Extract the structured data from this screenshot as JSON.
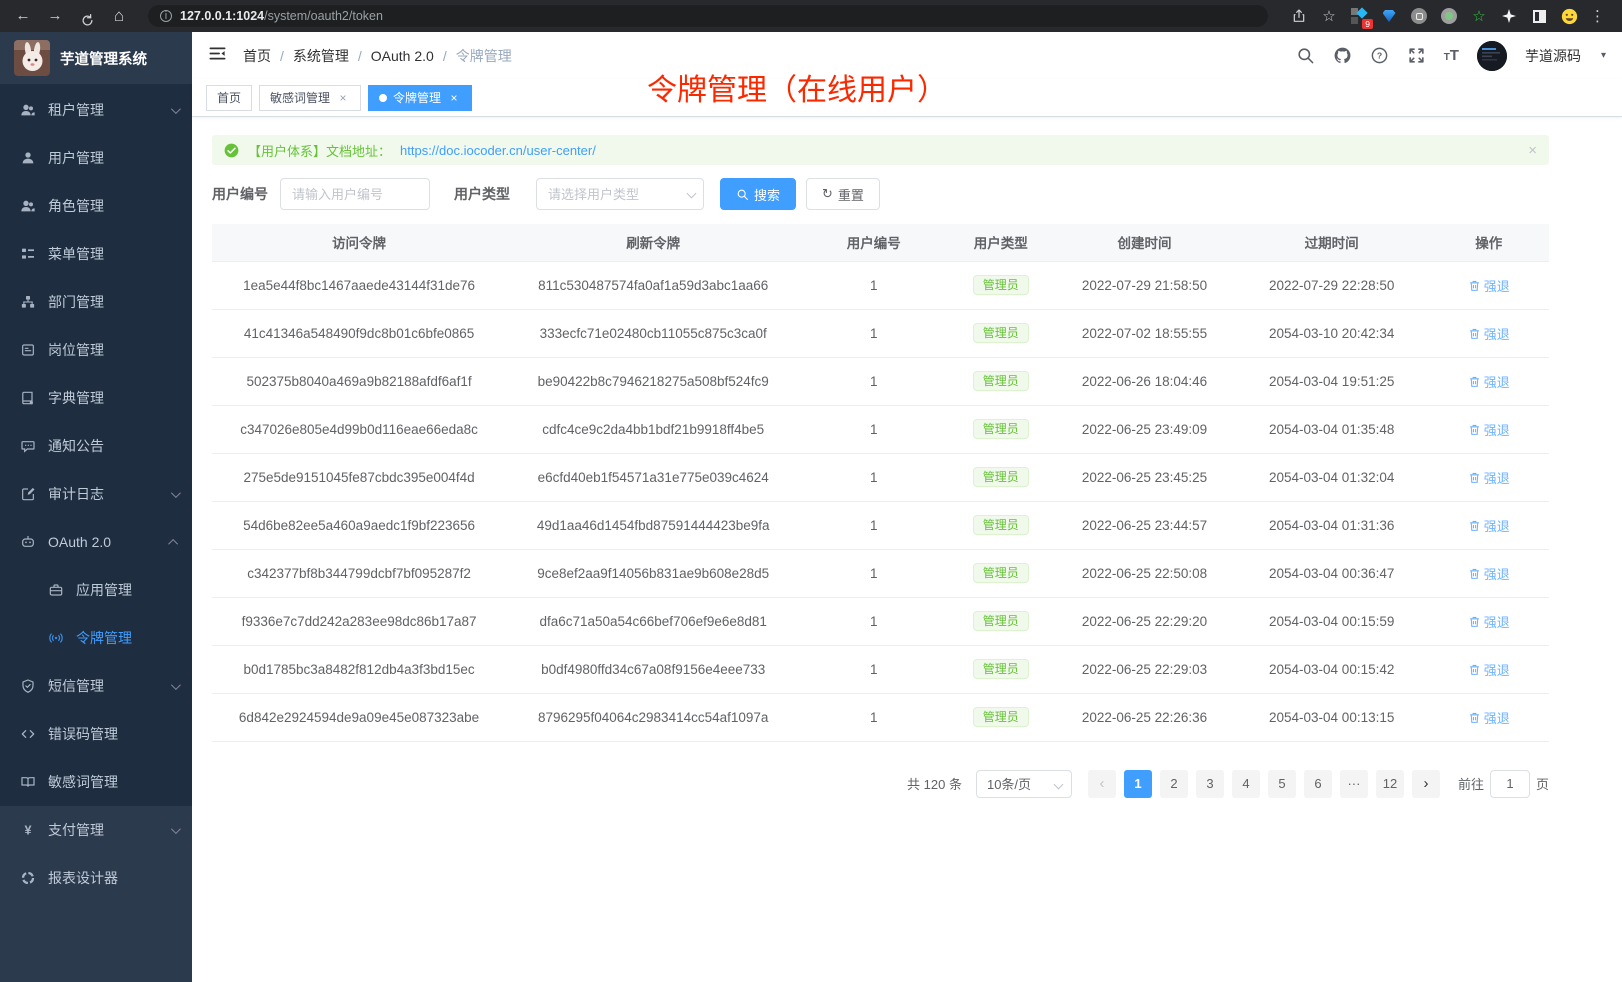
{
  "browser": {
    "url_host": "127.0.0.1:1024",
    "url_path": "/system/oauth2/token",
    "extension_badge": "9",
    "icons": [
      "back-icon",
      "forward-icon",
      "reload-icon",
      "home-icon",
      "info-icon",
      "share-icon",
      "bookmark-star-icon",
      "extension-grid-icon",
      "gem-icon",
      "command-circle-icon",
      "record-circle-icon",
      "green-star-icon",
      "pinwheel-icon",
      "reader-square-icon",
      "emoji-icon",
      "overflow-menu-icon"
    ]
  },
  "app": {
    "logo_title": "芋道管理系统",
    "annotation": "令牌管理（在线用户）",
    "breadcrumb": [
      "首页",
      "系统管理",
      "OAuth 2.0",
      "令牌管理"
    ],
    "header_icons": [
      "search-icon",
      "github-icon",
      "help-icon",
      "fullscreen-icon",
      "font-size-icon"
    ],
    "user_name": "芋道源码"
  },
  "sidebar": {
    "items": [
      {
        "label": "租户管理",
        "icon": "peoples",
        "arrow": "down"
      },
      {
        "label": "用户管理",
        "icon": "user"
      },
      {
        "label": "角色管理",
        "icon": "peoples"
      },
      {
        "label": "菜单管理",
        "icon": "tree-table"
      },
      {
        "label": "部门管理",
        "icon": "tree"
      },
      {
        "label": "岗位管理",
        "icon": "post"
      },
      {
        "label": "字典管理",
        "icon": "dict"
      },
      {
        "label": "通知公告",
        "icon": "message"
      },
      {
        "label": "审计日志",
        "icon": "log",
        "arrow": "down"
      },
      {
        "label": "OAuth 2.0",
        "icon": "robot",
        "arrow": "up"
      },
      {
        "label": "应用管理",
        "icon": "app",
        "child": true
      },
      {
        "label": "令牌管理",
        "icon": "token",
        "child": true,
        "active": true
      },
      {
        "label": "短信管理",
        "icon": "shield",
        "arrow": "down"
      },
      {
        "label": "错误码管理",
        "icon": "code"
      },
      {
        "label": "敏感词管理",
        "icon": "book-open"
      },
      {
        "label": "支付管理",
        "icon": "yen",
        "arrow": "down",
        "section2": true
      },
      {
        "label": "报表设计器",
        "icon": "chart",
        "section2": true
      }
    ]
  },
  "tabs": [
    {
      "label": "首页",
      "closable": false,
      "active": false
    },
    {
      "label": "敏感词管理",
      "closable": true,
      "active": false
    },
    {
      "label": "令牌管理",
      "closable": true,
      "active": true
    }
  ],
  "alert": {
    "text": "【用户体系】文档地址：",
    "link": "https://doc.iocoder.cn/user-center/",
    "close_icon": "×"
  },
  "filters": {
    "user_id_label": "用户编号",
    "user_id_placeholder": "请输入用户编号",
    "user_type_label": "用户类型",
    "user_type_placeholder": "请选择用户类型",
    "search_label": "搜索",
    "reset_label": "重置"
  },
  "table": {
    "headers": [
      "访问令牌",
      "刷新令牌",
      "用户编号",
      "用户类型",
      "创建时间",
      "过期时间",
      "操作"
    ],
    "action_label": "强退",
    "rows": [
      {
        "access_token": "1ea5e44f8bc1467aaede43144f31de76",
        "refresh_token": "811c530487574fa0af1a59d3abc1aa66",
        "user_id": "1",
        "user_type": "管理员",
        "create_time": "2022-07-29 21:58:50",
        "expire_time": "2022-07-29 22:28:50"
      },
      {
        "access_token": "41c41346a548490f9dc8b01c6bfe0865",
        "refresh_token": "333ecfc71e02480cb11055c875c3ca0f",
        "user_id": "1",
        "user_type": "管理员",
        "create_time": "2022-07-02 18:55:55",
        "expire_time": "2054-03-10 20:42:34"
      },
      {
        "access_token": "502375b8040a469a9b82188afdf6af1f",
        "refresh_token": "be90422b8c7946218275a508bf524fc9",
        "user_id": "1",
        "user_type": "管理员",
        "create_time": "2022-06-26 18:04:46",
        "expire_time": "2054-03-04 19:51:25"
      },
      {
        "access_token": "c347026e805e4d99b0d116eae66eda8c",
        "refresh_token": "cdfc4ce9c2da4bb1bdf21b9918ff4be5",
        "user_id": "1",
        "user_type": "管理员",
        "create_time": "2022-06-25 23:49:09",
        "expire_time": "2054-03-04 01:35:48"
      },
      {
        "access_token": "275e5de9151045fe87cbdc395e004f4d",
        "refresh_token": "e6cfd40eb1f54571a31e775e039c4624",
        "user_id": "1",
        "user_type": "管理员",
        "create_time": "2022-06-25 23:45:25",
        "expire_time": "2054-03-04 01:32:04"
      },
      {
        "access_token": "54d6be82ee5a460a9aedc1f9bf223656",
        "refresh_token": "49d1aa46d1454fbd87591444423be9fa",
        "user_id": "1",
        "user_type": "管理员",
        "create_time": "2022-06-25 23:44:57",
        "expire_time": "2054-03-04 01:31:36"
      },
      {
        "access_token": "c342377bf8b344799dcbf7bf095287f2",
        "refresh_token": "9ce8ef2aa9f14056b831ae9b608e28d5",
        "user_id": "1",
        "user_type": "管理员",
        "create_time": "2022-06-25 22:50:08",
        "expire_time": "2054-03-04 00:36:47"
      },
      {
        "access_token": "f9336e7c7dd242a283ee98dc86b17a87",
        "refresh_token": "dfa6c71a50a54c66bef706ef9e6e8d81",
        "user_id": "1",
        "user_type": "管理员",
        "create_time": "2022-06-25 22:29:20",
        "expire_time": "2054-03-04 00:15:59"
      },
      {
        "access_token": "b0d1785bc3a8482f812db4a3f3bd15ec",
        "refresh_token": "b0df4980ffd34c67a08f9156e4eee733",
        "user_id": "1",
        "user_type": "管理员",
        "create_time": "2022-06-25 22:29:03",
        "expire_time": "2054-03-04 00:15:42"
      },
      {
        "access_token": "6d842e2924594de9a09e45e087323abe",
        "refresh_token": "8796295f04064c2983414cc54af1097a",
        "user_id": "1",
        "user_type": "管理员",
        "create_time": "2022-06-25 22:26:36",
        "expire_time": "2054-03-04 00:13:15"
      }
    ]
  },
  "pagination": {
    "total_label": "共 120 条",
    "page_size_label": "10条/页",
    "pages": [
      "1",
      "2",
      "3",
      "4",
      "5",
      "6",
      "···",
      "12"
    ],
    "active_page": "1",
    "goto_label": "前往",
    "goto_value": "1",
    "unit_label": "页"
  },
  "colors": {
    "accent_blue": "#409eff",
    "success_green": "#67c23a",
    "action_link_blue": "#6fb3fc",
    "annotation_red": "#fb2900",
    "sidebar_bg": "#1e2d40"
  }
}
